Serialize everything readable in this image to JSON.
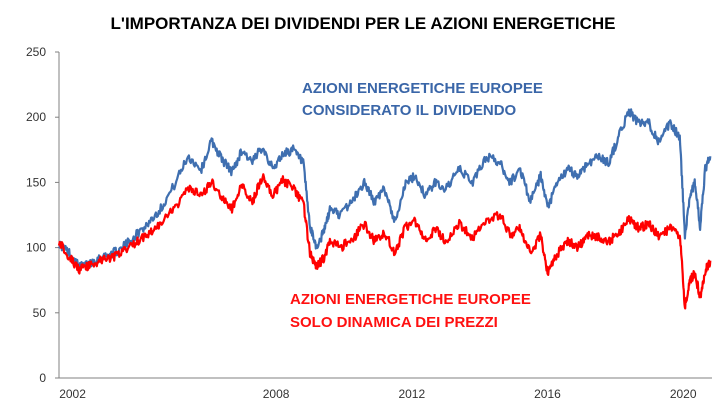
{
  "chart_data": {
    "type": "line",
    "title": "L'IMPORTANZA DEI DIVIDENDI PER LE AZIONI ENERGETICHE",
    "xlabel": "",
    "ylabel": "",
    "ylim": [
      0,
      250
    ],
    "yticks": [
      0,
      50,
      100,
      150,
      200,
      250
    ],
    "xlim": [
      2001.6,
      2020.85
    ],
    "xticks": [
      2002,
      2008,
      2012,
      2016,
      2020
    ],
    "grid": false,
    "annotations": {
      "blue_line1": "AZIONI ENERGETICHE EUROPEE",
      "blue_line2": "CONSIDERATO IL DIVIDENDO",
      "red_line1": "AZIONI ENERGETICHE EUROPEE",
      "red_line2": "SOLO DINAMICA DEI PREZZI"
    },
    "series": [
      {
        "color": "#3F6FB0",
        "x": [
          2001.6,
          2001.9,
          2002.2,
          2002.5,
          2002.8,
          2003.1,
          2003.4,
          2003.8,
          2004.2,
          2004.6,
          2005.0,
          2005.4,
          2005.8,
          2006.1,
          2006.4,
          2006.7,
          2007.0,
          2007.3,
          2007.6,
          2007.9,
          2008.2,
          2008.5,
          2008.8,
          2009.0,
          2009.2,
          2009.4,
          2009.6,
          2009.9,
          2010.3,
          2010.6,
          2010.9,
          2011.2,
          2011.5,
          2011.8,
          2012.1,
          2012.4,
          2012.7,
          2013.0,
          2013.4,
          2013.8,
          2014.2,
          2014.6,
          2014.9,
          2015.2,
          2015.5,
          2015.8,
          2016.0,
          2016.3,
          2016.6,
          2016.9,
          2017.2,
          2017.5,
          2017.8,
          2018.1,
          2018.4,
          2018.7,
          2019.0,
          2019.3,
          2019.6,
          2019.9,
          2020.05,
          2020.2,
          2020.35,
          2020.5,
          2020.65,
          2020.8
        ],
        "values": [
          103,
          96,
          85,
          88,
          92,
          95,
          98,
          108,
          118,
          130,
          148,
          170,
          160,
          182,
          168,
          158,
          175,
          165,
          178,
          160,
          172,
          175,
          165,
          115,
          100,
          112,
          130,
          125,
          138,
          150,
          135,
          145,
          120,
          148,
          155,
          140,
          150,
          145,
          160,
          150,
          170,
          165,
          150,
          160,
          135,
          155,
          130,
          150,
          160,
          155,
          165,
          170,
          165,
          185,
          205,
          195,
          195,
          180,
          195,
          185,
          110,
          140,
          150,
          115,
          160,
          170
        ]
      },
      {
        "color": "#ff0000",
        "x": [
          2001.6,
          2001.9,
          2002.2,
          2002.5,
          2002.8,
          2003.1,
          2003.4,
          2003.8,
          2004.2,
          2004.6,
          2005.0,
          2005.4,
          2005.8,
          2006.1,
          2006.4,
          2006.7,
          2007.0,
          2007.3,
          2007.6,
          2007.9,
          2008.2,
          2008.5,
          2008.8,
          2009.0,
          2009.2,
          2009.4,
          2009.6,
          2009.9,
          2010.3,
          2010.6,
          2010.9,
          2011.2,
          2011.5,
          2011.8,
          2012.1,
          2012.4,
          2012.7,
          2013.0,
          2013.4,
          2013.8,
          2014.2,
          2014.6,
          2014.9,
          2015.2,
          2015.5,
          2015.8,
          2016.0,
          2016.3,
          2016.6,
          2016.9,
          2017.2,
          2017.5,
          2017.8,
          2018.1,
          2018.4,
          2018.7,
          2019.0,
          2019.3,
          2019.6,
          2019.9,
          2020.05,
          2020.2,
          2020.35,
          2020.5,
          2020.65,
          2020.8
        ],
        "values": [
          105,
          93,
          83,
          86,
          90,
          92,
          95,
          103,
          110,
          118,
          130,
          145,
          140,
          150,
          138,
          130,
          148,
          135,
          155,
          140,
          152,
          145,
          135,
          95,
          85,
          92,
          105,
          100,
          108,
          118,
          105,
          112,
          95,
          115,
          120,
          105,
          115,
          105,
          118,
          108,
          120,
          125,
          110,
          115,
          95,
          110,
          80,
          95,
          105,
          100,
          110,
          108,
          105,
          110,
          122,
          115,
          118,
          108,
          115,
          110,
          55,
          75,
          80,
          62,
          82,
          90
        ]
      }
    ]
  }
}
